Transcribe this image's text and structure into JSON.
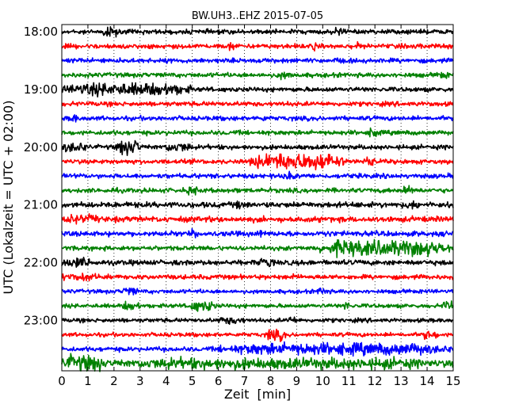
{
  "chart_data": {
    "type": "line",
    "title": "BW.UH3..EHZ 2015-07-05",
    "xlabel": "Zeit  [min]",
    "ylabel": "UTC (Lokalzeit = UTC + 02:00)",
    "xlim": [
      0,
      15
    ],
    "x_ticks": [
      "0",
      "1",
      "2",
      "3",
      "4",
      "5",
      "6",
      "7",
      "8",
      "9",
      "10",
      "11",
      "12",
      "13",
      "14",
      "15"
    ],
    "y_ticks": [
      {
        "label": "18:00",
        "row": 0
      },
      {
        "label": "19:00",
        "row": 4
      },
      {
        "label": "20:00",
        "row": 8
      },
      {
        "label": "21:00",
        "row": 12
      },
      {
        "label": "22:00",
        "row": 16
      },
      {
        "label": "23:00",
        "row": 20
      }
    ],
    "row_minutes": 15,
    "rows_total": 24,
    "colors": [
      "#000000",
      "#ff0000",
      "#0000ff",
      "#008000"
    ],
    "grid": "vertical dotted",
    "traces": [
      {
        "row": 0,
        "amp": 0.45,
        "events": [
          {
            "x0": 1.5,
            "x1": 2.2,
            "amp": 1.0
          },
          {
            "x0": 10.5,
            "x1": 10.8,
            "amp": 1.1
          }
        ]
      },
      {
        "row": 1,
        "amp": 0.45,
        "events": [
          {
            "x0": 6.4,
            "x1": 6.6,
            "amp": 1.2
          },
          {
            "x0": 9.6,
            "x1": 9.8,
            "amp": 0.9
          },
          {
            "x0": 11.2,
            "x1": 11.4,
            "amp": 0.9
          }
        ]
      },
      {
        "row": 2,
        "amp": 0.45,
        "events": [
          {
            "x0": 10.5,
            "x1": 10.7,
            "amp": 0.8
          }
        ]
      },
      {
        "row": 3,
        "amp": 0.45,
        "events": [
          {
            "x0": 8.2,
            "x1": 8.8,
            "amp": 0.8
          },
          {
            "x0": 14.4,
            "x1": 14.8,
            "amp": 0.8
          }
        ]
      },
      {
        "row": 4,
        "amp": 0.45,
        "events": [
          {
            "x0": 0.0,
            "x1": 5.0,
            "amp": 1.25
          }
        ]
      },
      {
        "row": 5,
        "amp": 0.45,
        "events": []
      },
      {
        "row": 6,
        "amp": 0.45,
        "events": [
          {
            "x0": 0.3,
            "x1": 0.6,
            "amp": 0.9
          },
          {
            "x0": 7.6,
            "x1": 7.8,
            "amp": 0.8
          }
        ]
      },
      {
        "row": 7,
        "amp": 0.45,
        "events": [
          {
            "x0": 11.8,
            "x1": 12.1,
            "amp": 1.3
          }
        ]
      },
      {
        "row": 8,
        "amp": 0.45,
        "events": [
          {
            "x0": 0.0,
            "x1": 1.0,
            "amp": 1.0
          },
          {
            "x0": 2.1,
            "x1": 3.0,
            "amp": 1.6
          },
          {
            "x0": 3.9,
            "x1": 5.0,
            "amp": 1.0
          }
        ]
      },
      {
        "row": 9,
        "amp": 0.45,
        "events": [
          {
            "x0": 7.2,
            "x1": 10.8,
            "amp": 1.7
          },
          {
            "x0": 11.5,
            "x1": 12.0,
            "amp": 1.0
          }
        ]
      },
      {
        "row": 10,
        "amp": 0.45,
        "events": [
          {
            "x0": 8.5,
            "x1": 9.0,
            "amp": 0.8
          }
        ]
      },
      {
        "row": 11,
        "amp": 0.45,
        "events": [
          {
            "x0": 4.8,
            "x1": 5.2,
            "amp": 0.9
          },
          {
            "x0": 13.0,
            "x1": 13.5,
            "amp": 0.9
          }
        ]
      },
      {
        "row": 12,
        "amp": 0.55,
        "events": [
          {
            "x0": 6.6,
            "x1": 7.0,
            "amp": 0.9
          },
          {
            "x0": 13.2,
            "x1": 13.7,
            "amp": 0.9
          }
        ]
      },
      {
        "row": 13,
        "amp": 0.55,
        "events": [
          {
            "x0": 0.0,
            "x1": 1.5,
            "amp": 0.9
          }
        ]
      },
      {
        "row": 14,
        "amp": 0.5,
        "events": [
          {
            "x0": 4.9,
            "x1": 5.2,
            "amp": 0.9
          },
          {
            "x0": 7.4,
            "x1": 7.7,
            "amp": 0.8
          },
          {
            "x0": 10.0,
            "x1": 10.3,
            "amp": 0.8
          }
        ]
      },
      {
        "row": 15,
        "amp": 0.45,
        "events": [
          {
            "x0": 9.8,
            "x1": 15.0,
            "amp": 1.55
          }
        ]
      },
      {
        "row": 16,
        "amp": 0.5,
        "events": [
          {
            "x0": 0.0,
            "x1": 1.2,
            "amp": 1.0
          },
          {
            "x0": 7.6,
            "x1": 8.1,
            "amp": 1.1
          }
        ]
      },
      {
        "row": 17,
        "amp": 0.45,
        "events": [
          {
            "x0": 0.0,
            "x1": 1.5,
            "amp": 0.8
          },
          {
            "x0": 8.7,
            "x1": 8.9,
            "amp": 1.0
          }
        ]
      },
      {
        "row": 18,
        "amp": 0.4,
        "events": [
          {
            "x0": 2.3,
            "x1": 2.9,
            "amp": 0.9
          },
          {
            "x0": 9.8,
            "x1": 10.2,
            "amp": 0.9
          }
        ]
      },
      {
        "row": 19,
        "amp": 0.4,
        "events": [
          {
            "x0": 2.3,
            "x1": 3.0,
            "amp": 0.9
          },
          {
            "x0": 4.8,
            "x1": 5.9,
            "amp": 1.1
          },
          {
            "x0": 10.8,
            "x1": 11.1,
            "amp": 0.9
          },
          {
            "x0": 14.6,
            "x1": 15.0,
            "amp": 1.2
          }
        ]
      },
      {
        "row": 20,
        "amp": 0.4,
        "events": [
          {
            "x0": 6.0,
            "x1": 7.0,
            "amp": 0.8
          },
          {
            "x0": 8.6,
            "x1": 9.0,
            "amp": 0.8
          }
        ]
      },
      {
        "row": 21,
        "amp": 0.4,
        "events": [
          {
            "x0": 7.8,
            "x1": 8.6,
            "amp": 1.1
          },
          {
            "x0": 13.8,
            "x1": 14.4,
            "amp": 0.9
          }
        ]
      },
      {
        "row": 22,
        "amp": 0.45,
        "events": [
          {
            "x0": 6.0,
            "x1": 15.0,
            "amp": 1.2
          }
        ]
      },
      {
        "row": 23,
        "amp": 0.45,
        "events": [
          {
            "x0": 0.0,
            "x1": 1.7,
            "amp": 1.6
          },
          {
            "x0": 1.7,
            "x1": 15.0,
            "amp": 1.1
          }
        ]
      }
    ]
  }
}
